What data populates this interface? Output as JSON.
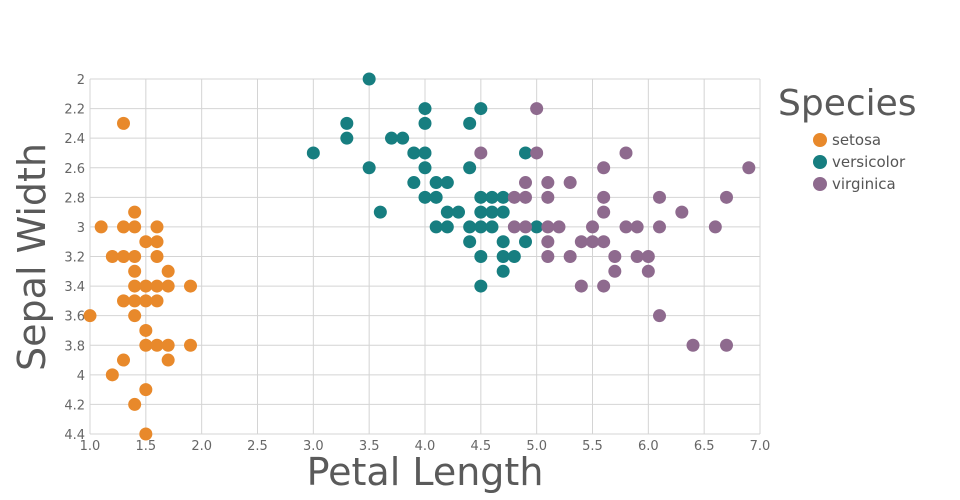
{
  "chart_data": {
    "type": "scatter",
    "xlabel": "Petal Length",
    "ylabel": "Sepal Width",
    "xlim": [
      1.0,
      7.0
    ],
    "ylim": [
      2.0,
      4.4
    ],
    "y_inverted": true,
    "grid": true,
    "legend_title": "Species",
    "legend_position": "right",
    "x_ticks": [
      "1.0",
      "1.5",
      "2.0",
      "2.5",
      "3.0",
      "3.5",
      "4.0",
      "4.5",
      "5.0",
      "5.5",
      "6.0",
      "6.5",
      "7.0"
    ],
    "y_ticks": [
      "2",
      "2.2",
      "2.4",
      "2.6",
      "2.8",
      "3",
      "3.2",
      "3.4",
      "3.6",
      "3.8",
      "4",
      "4.2",
      "4.4"
    ],
    "series": [
      {
        "name": "setosa",
        "color": "#e8892b",
        "points": [
          [
            1.3,
            2.3
          ],
          [
            1.4,
            2.9
          ],
          [
            1.1,
            3.0
          ],
          [
            1.3,
            3.0
          ],
          [
            1.4,
            3.0
          ],
          [
            1.6,
            3.0
          ],
          [
            1.5,
            3.1
          ],
          [
            1.6,
            3.1
          ],
          [
            1.2,
            3.2
          ],
          [
            1.3,
            3.2
          ],
          [
            1.4,
            3.2
          ],
          [
            1.6,
            3.2
          ],
          [
            1.4,
            3.3
          ],
          [
            1.7,
            3.3
          ],
          [
            1.4,
            3.4
          ],
          [
            1.5,
            3.4
          ],
          [
            1.6,
            3.4
          ],
          [
            1.7,
            3.4
          ],
          [
            1.9,
            3.4
          ],
          [
            1.3,
            3.5
          ],
          [
            1.4,
            3.5
          ],
          [
            1.5,
            3.5
          ],
          [
            1.6,
            3.5
          ],
          [
            1.0,
            3.6
          ],
          [
            1.4,
            3.6
          ],
          [
            1.5,
            3.7
          ],
          [
            1.5,
            3.8
          ],
          [
            1.6,
            3.8
          ],
          [
            1.7,
            3.8
          ],
          [
            1.9,
            3.8
          ],
          [
            1.3,
            3.9
          ],
          [
            1.7,
            3.9
          ],
          [
            1.2,
            4.0
          ],
          [
            1.5,
            4.1
          ],
          [
            1.4,
            4.2
          ],
          [
            1.5,
            4.4
          ]
        ]
      },
      {
        "name": "versicolor",
        "color": "#177e80",
        "points": [
          [
            3.5,
            2.0
          ],
          [
            4.0,
            2.2
          ],
          [
            4.5,
            2.2
          ],
          [
            3.3,
            2.3
          ],
          [
            4.0,
            2.3
          ],
          [
            4.4,
            2.3
          ],
          [
            3.3,
            2.4
          ],
          [
            3.7,
            2.4
          ],
          [
            3.8,
            2.4
          ],
          [
            3.0,
            2.5
          ],
          [
            3.9,
            2.5
          ],
          [
            4.0,
            2.5
          ],
          [
            4.9,
            2.5
          ],
          [
            3.5,
            2.6
          ],
          [
            4.0,
            2.6
          ],
          [
            4.4,
            2.6
          ],
          [
            3.9,
            2.7
          ],
          [
            4.1,
            2.7
          ],
          [
            4.2,
            2.7
          ],
          [
            4.0,
            2.8
          ],
          [
            4.1,
            2.8
          ],
          [
            4.5,
            2.8
          ],
          [
            4.6,
            2.8
          ],
          [
            4.7,
            2.8
          ],
          [
            3.6,
            2.9
          ],
          [
            4.2,
            2.9
          ],
          [
            4.3,
            2.9
          ],
          [
            4.5,
            2.9
          ],
          [
            4.6,
            2.9
          ],
          [
            4.7,
            2.9
          ],
          [
            4.1,
            3.0
          ],
          [
            4.2,
            3.0
          ],
          [
            4.4,
            3.0
          ],
          [
            4.5,
            3.0
          ],
          [
            4.6,
            3.0
          ],
          [
            5.0,
            3.0
          ],
          [
            4.4,
            3.1
          ],
          [
            4.7,
            3.1
          ],
          [
            4.9,
            3.1
          ],
          [
            4.5,
            3.2
          ],
          [
            4.7,
            3.2
          ],
          [
            4.8,
            3.2
          ],
          [
            4.7,
            3.3
          ],
          [
            4.5,
            3.4
          ]
        ]
      },
      {
        "name": "virginica",
        "color": "#8e6a8e",
        "points": [
          [
            5.0,
            2.2
          ],
          [
            4.5,
            2.5
          ],
          [
            5.0,
            2.5
          ],
          [
            5.8,
            2.5
          ],
          [
            5.6,
            2.6
          ],
          [
            6.9,
            2.6
          ],
          [
            4.9,
            2.7
          ],
          [
            5.1,
            2.7
          ],
          [
            5.3,
            2.7
          ],
          [
            4.8,
            2.8
          ],
          [
            4.9,
            2.8
          ],
          [
            5.1,
            2.8
          ],
          [
            5.6,
            2.8
          ],
          [
            6.1,
            2.8
          ],
          [
            6.7,
            2.8
          ],
          [
            5.6,
            2.9
          ],
          [
            6.3,
            2.9
          ],
          [
            4.8,
            3.0
          ],
          [
            4.9,
            3.0
          ],
          [
            5.1,
            3.0
          ],
          [
            5.2,
            3.0
          ],
          [
            5.5,
            3.0
          ],
          [
            5.8,
            3.0
          ],
          [
            5.9,
            3.0
          ],
          [
            6.1,
            3.0
          ],
          [
            6.6,
            3.0
          ],
          [
            5.1,
            3.1
          ],
          [
            5.4,
            3.1
          ],
          [
            5.5,
            3.1
          ],
          [
            5.6,
            3.1
          ],
          [
            5.1,
            3.2
          ],
          [
            5.3,
            3.2
          ],
          [
            5.7,
            3.2
          ],
          [
            5.9,
            3.2
          ],
          [
            6.0,
            3.2
          ],
          [
            5.7,
            3.3
          ],
          [
            6.0,
            3.3
          ],
          [
            5.4,
            3.4
          ],
          [
            5.6,
            3.4
          ],
          [
            6.1,
            3.6
          ],
          [
            6.4,
            3.8
          ],
          [
            6.7,
            3.8
          ]
        ]
      }
    ]
  }
}
